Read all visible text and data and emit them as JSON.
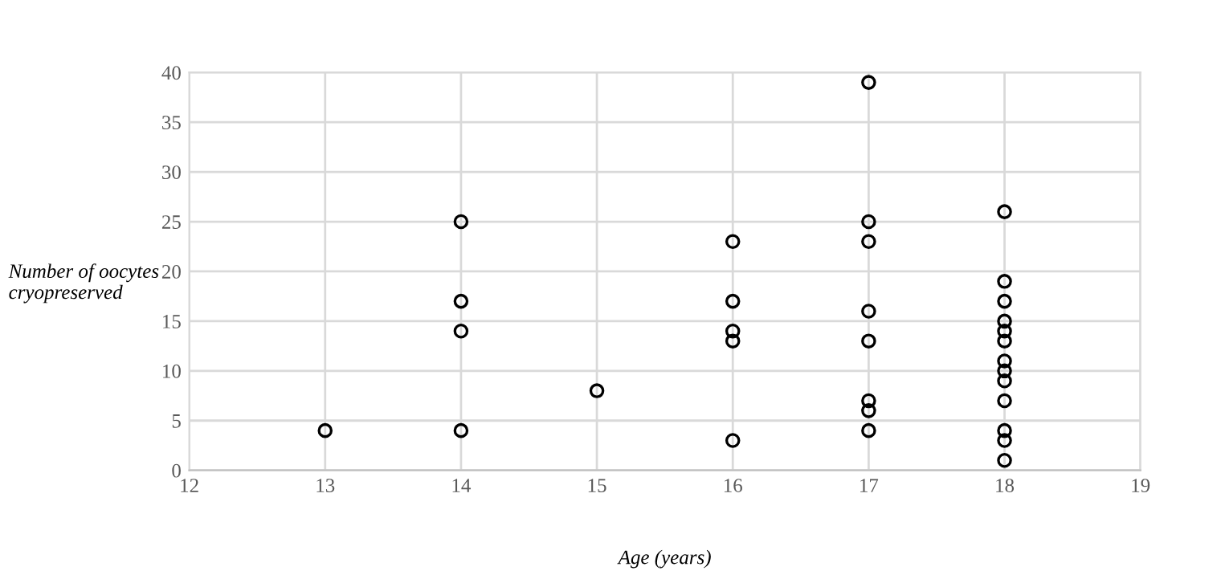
{
  "chart_data": {
    "type": "scatter",
    "xlabel": "Age (years)",
    "ylabel": "Number of oocytes\ncryopreserved",
    "x": [
      13,
      14,
      14,
      14,
      14,
      15,
      16,
      16,
      16,
      16,
      16,
      17,
      17,
      17,
      17,
      17,
      17,
      17,
      17,
      18,
      18,
      18,
      18,
      18,
      18,
      18,
      18,
      18,
      18,
      18,
      18,
      18
    ],
    "series": [
      {
        "color": "#000000",
        "values": [
          4,
          25,
          17,
          14,
          4,
          8,
          23,
          17,
          14,
          13,
          3,
          39,
          25,
          23,
          16,
          13,
          7,
          6,
          4,
          26,
          19,
          17,
          15,
          14,
          13,
          11,
          10,
          9,
          7,
          4,
          3,
          1
        ]
      }
    ],
    "xlim": [
      12,
      19
    ],
    "xticks": [
      12,
      13,
      14,
      15,
      16,
      17,
      18,
      19
    ],
    "ylim": [
      0,
      40
    ],
    "yticks": [
      0,
      5,
      10,
      15,
      20,
      25,
      30,
      35,
      40
    ],
    "grid": true,
    "marker": "circle",
    "legend": false
  }
}
